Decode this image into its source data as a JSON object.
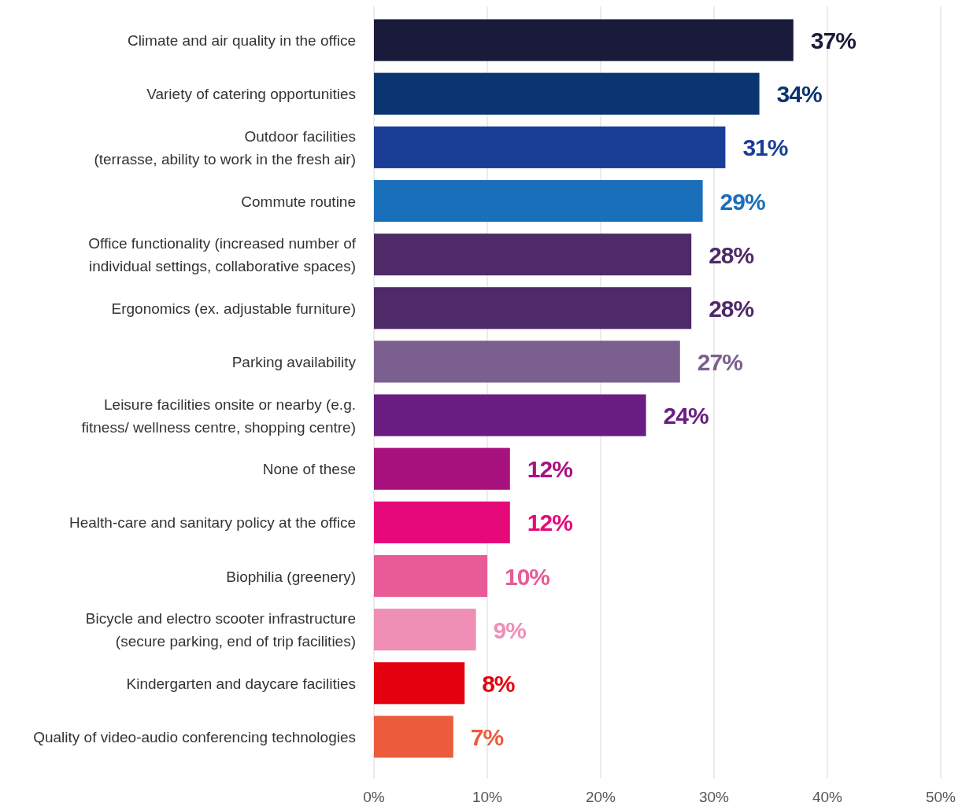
{
  "chart_data": {
    "type": "bar",
    "orientation": "horizontal",
    "categories": [
      "Climate and air quality in the office",
      "Variety of catering opportunities",
      "Outdoor facilities\n(terrasse, ability to work in the fresh air)",
      "Commute routine",
      "Office functionality (increased number of\nindividual settings, collaborative spaces)",
      "Ergonomics (ex. adjustable furniture)",
      "Parking availability",
      "Leisure facilities onsite or nearby (e.g.\nfitness/ wellness centre, shopping centre)",
      "None of these",
      "Health-care and sanitary policy at the office",
      "Biophilia (greenery)",
      "Bicycle and electro scooter infrastructure\n(secure parking, end of trip facilities)",
      "Kindergarten and daycare facilities",
      "Quality of video-audio conferencing technologies"
    ],
    "values": [
      37,
      34,
      31,
      29,
      28,
      28,
      27,
      24,
      12,
      12,
      10,
      9,
      8,
      7
    ],
    "value_labels": [
      "37%",
      "34%",
      "31%",
      "29%",
      "28%",
      "28%",
      "27%",
      "24%",
      "12%",
      "12%",
      "10%",
      "9%",
      "8%",
      "7%"
    ],
    "colors": [
      "#1a1a3a",
      "#0a3570",
      "#1a3d96",
      "#1a6fba",
      "#4e2a68",
      "#4e2a68",
      "#7b5f8e",
      "#6a1e82",
      "#a8127e",
      "#e6097a",
      "#e95b96",
      "#ef8fb6",
      "#e3000f",
      "#eb5b3c"
    ],
    "xlim": [
      0,
      50
    ],
    "xticks": [
      {
        "value": 0,
        "label": "0%"
      },
      {
        "value": 10,
        "label": "10%"
      },
      {
        "value": 20,
        "label": "20%"
      },
      {
        "value": 30,
        "label": "30%"
      },
      {
        "value": 40,
        "label": "40%"
      },
      {
        "value": 50,
        "label": "50%"
      }
    ],
    "grid": "x"
  }
}
